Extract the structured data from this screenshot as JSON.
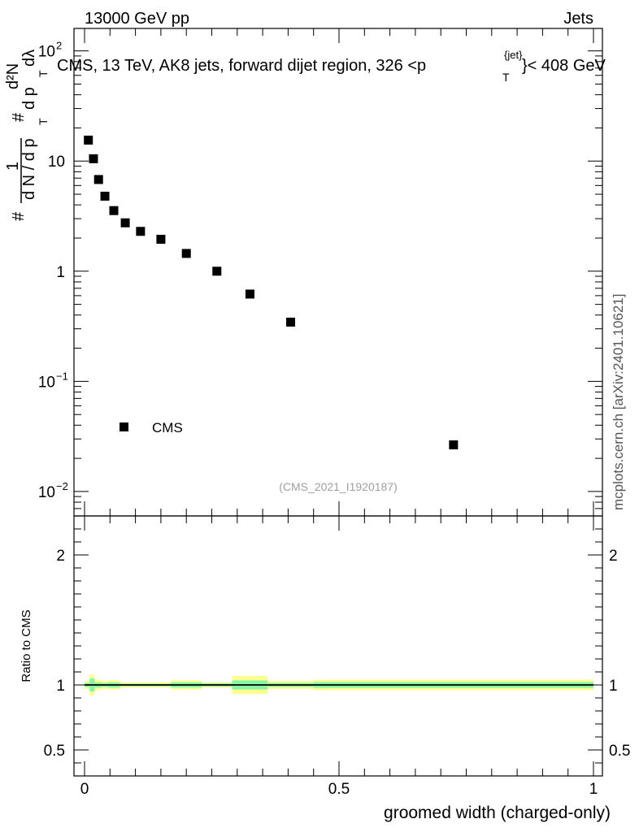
{
  "header": {
    "left": "13000 GeV pp",
    "right": "Jets"
  },
  "chart_data": {
    "type": "scatter",
    "title": "CMS, 13 TeV, AK8 jets, forward dijet region, 326 <p",
    "title_sup": "{jet}",
    "title_sub": "T",
    "title_suffix": "}< 408 GeV",
    "xlabel": "groomed width (charged-only)",
    "ylabel_main": "d N / d p",
    "ylabel_hash": "#",
    "ylabel_numer": "1",
    "ylabel_frac": "d p",
    "ylabel_dN": "d²N",
    "ylabel_dlambda": "dλ",
    "ylabel_T": "T",
    "ylabel_ratio": "Ratio to CMS",
    "xlim": [
      0,
      1
    ],
    "ylim_log": [
      0.006,
      160
    ],
    "ratio_ylim": [
      0.3,
      2.3
    ],
    "x_ticks": [
      "0",
      "0.5",
      "1"
    ],
    "y_ticks": [
      {
        "base": "10",
        "exp": "2"
      },
      {
        "base": "10",
        "exp": ""
      },
      {
        "base": "1",
        "exp": ""
      },
      {
        "base": "10",
        "exp": "−1"
      },
      {
        "base": "10",
        "exp": "−2"
      }
    ],
    "ratio_ticks": [
      "2",
      "1",
      "0.5"
    ],
    "series": [
      {
        "name": "CMS",
        "x": [
          0.0075,
          0.0175,
          0.0275,
          0.04,
          0.0575,
          0.08,
          0.11,
          0.15,
          0.2,
          0.26,
          0.325,
          0.405,
          0.725
        ],
        "y": [
          15.5,
          10.5,
          6.8,
          4.8,
          3.55,
          2.75,
          2.3,
          1.95,
          1.45,
          1.0,
          0.62,
          0.345,
          0.0265
        ]
      }
    ],
    "ratio_bands": [
      {
        "x0": 0.0,
        "x1": 0.01,
        "yellow": 0.03,
        "green": 0.015
      },
      {
        "x0": 0.01,
        "x1": 0.02,
        "yellow": 0.08,
        "green": 0.05
      },
      {
        "x0": 0.02,
        "x1": 0.035,
        "yellow": 0.04,
        "green": 0.02
      },
      {
        "x0": 0.035,
        "x1": 0.045,
        "yellow": 0.03,
        "green": 0.015
      },
      {
        "x0": 0.045,
        "x1": 0.07,
        "yellow": 0.035,
        "green": 0.02
      },
      {
        "x0": 0.07,
        "x1": 0.17,
        "yellow": 0.02,
        "green": 0.01
      },
      {
        "x0": 0.17,
        "x1": 0.23,
        "yellow": 0.035,
        "green": 0.02
      },
      {
        "x0": 0.23,
        "x1": 0.29,
        "yellow": 0.02,
        "green": 0.012
      },
      {
        "x0": 0.29,
        "x1": 0.36,
        "yellow": 0.07,
        "green": 0.035
      },
      {
        "x0": 0.36,
        "x1": 0.45,
        "yellow": 0.03,
        "green": 0.015
      },
      {
        "x0": 0.45,
        "x1": 1.0,
        "yellow": 0.04,
        "green": 0.022
      }
    ],
    "legend": "CMS",
    "legend_position": "bottom-left",
    "watermark": "(CMS_2021_I1920187)",
    "side_label": "mcplots.cern.ch [arXiv:2401.10621]",
    "colors": {
      "yellow": "#ffff90",
      "green": "#86f5a4",
      "marker": "#000000",
      "watermark": "#a0a0a0"
    }
  }
}
